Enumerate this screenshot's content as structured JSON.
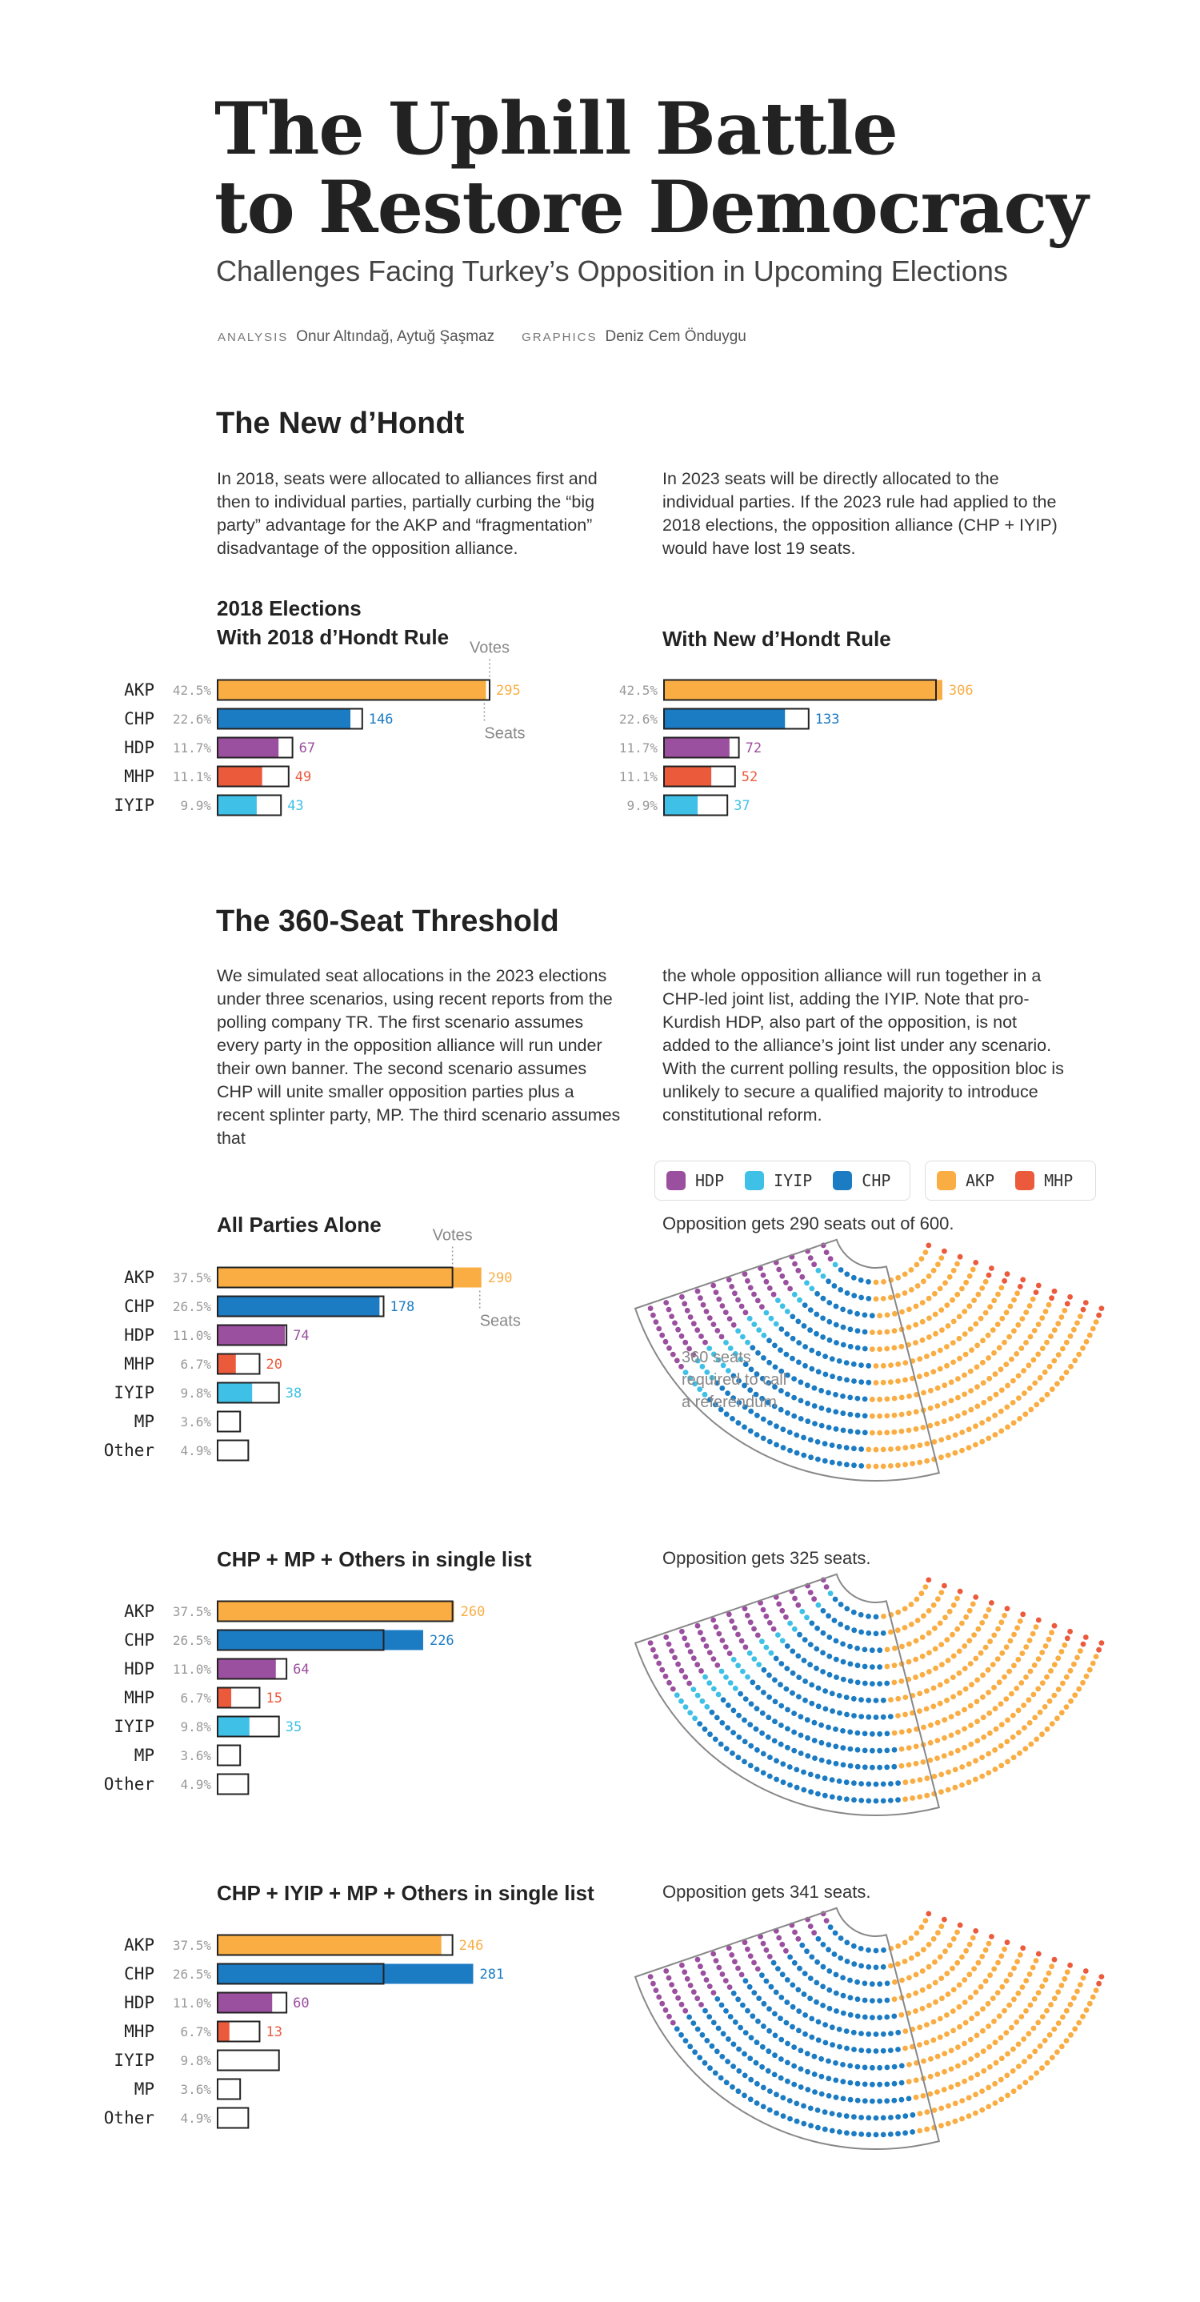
{
  "header": {
    "title_line1": "The Uphill Battle",
    "title_line2": "to Restore Democracy",
    "subtitle": "Challenges Facing Turkey’s Opposition in Upcoming Elections",
    "analysis_role": "ANALYSIS",
    "analysis_names": "Onur Altındağ, Aytuğ Şaşmaz",
    "graphics_role": "GRAPHICS",
    "graphics_names": "Deniz Cem Önduygu"
  },
  "colors": {
    "AKP": "#f9ad43",
    "CHP": "#1b7bc3",
    "HDP": "#9b4f9f",
    "MHP": "#ec5a3c",
    "IYIP": "#3fc0e6",
    "outline": "#222222",
    "vote_label": "#999999"
  },
  "section1": {
    "title": "The New d’Hondt",
    "para_left": "In 2018, seats were allocated to alliances first and then to individual parties, partially curbing the “big party” advantage for the AKP and “fragmentation” disadvantage of the opposition alliance.",
    "para_right": "In 2023 seats will be directly allocated to the individual parties. If the 2023 rule had applied to the 2018 elections, the opposition alliance (CHP + IYIP) would have lost 19 seats.",
    "chart_left_title_line1": "2018 Elections",
    "chart_left_title_line2": "With 2018 d’Hondt Rule",
    "chart_right_title": "With New d’Hondt Rule",
    "votes_label": "Votes",
    "seats_label": "Seats"
  },
  "section2": {
    "title": "The 360-Seat Threshold",
    "para_left": "We simulated seat allocations in the 2023 elections under three scenarios, using recent reports from the polling company TR. The first scenario assumes every party in the opposition alliance will run under their own banner. The second scenario assumes CHP will unite smaller opposition parties plus a recent splinter party, MP. The third scenario assumes that",
    "para_right": "the whole opposition alliance will run together in a CHP-led joint list, adding the IYIP. Note that pro-Kurdish HDP, also part of the opposition, is not added to the alliance’s joint list under any scenario. With the current polling results, the opposition bloc is unlikely to secure a qualified majority to introduce constitutional reform.",
    "legend_opposition": [
      "HDP",
      "IYIP",
      "CHP"
    ],
    "legend_government": [
      "AKP",
      "MHP"
    ],
    "votes_label": "Votes",
    "seats_label": "Seats",
    "threshold_note": [
      "360 seats",
      "required to call",
      "a referendum"
    ],
    "scenario_titles": [
      "All Parties Alone",
      "CHP + MP + Others in single list",
      "CHP + IYIP + MP + Others in single list"
    ],
    "scenario_captions": [
      "Opposition gets 290 seats out of 600.",
      "Opposition gets 325 seats.",
      "Opposition gets 341 seats."
    ]
  },
  "chart_data": [
    {
      "type": "bar",
      "title": "2018 Elections With 2018 d’Hondt Rule",
      "categories": [
        "AKP",
        "CHP",
        "HDP",
        "MHP",
        "IYIP"
      ],
      "series": [
        {
          "name": "Votes",
          "values": [
            42.5,
            22.6,
            11.7,
            11.1,
            9.9
          ],
          "labels": [
            "42.5%",
            "22.6%",
            "11.7%",
            "11.1%",
            "9.9%"
          ]
        },
        {
          "name": "Seats",
          "values": [
            295,
            146,
            67,
            49,
            43
          ]
        }
      ],
      "total_seats": 600
    },
    {
      "type": "bar",
      "title": "With New d’Hondt Rule",
      "categories": [
        "AKP",
        "CHP",
        "HDP",
        "MHP",
        "IYIP"
      ],
      "series": [
        {
          "name": "Votes",
          "values": [
            42.5,
            22.6,
            11.7,
            11.1,
            9.9
          ],
          "labels": [
            "42.5%",
            "22.6%",
            "11.7%",
            "11.1%",
            "9.9%"
          ]
        },
        {
          "name": "Seats",
          "values": [
            306,
            133,
            72,
            52,
            37
          ]
        }
      ],
      "total_seats": 600
    },
    {
      "type": "bar",
      "title": "All Parties Alone",
      "categories": [
        "AKP",
        "CHP",
        "HDP",
        "MHP",
        "IYIP",
        "MP",
        "Other"
      ],
      "series": [
        {
          "name": "Votes",
          "values": [
            37.5,
            26.5,
            11.0,
            6.7,
            9.8,
            3.6,
            4.9
          ],
          "labels": [
            "37.5%",
            "26.5%",
            "11.0%",
            "6.7%",
            "9.8%",
            "3.6%",
            "4.9%"
          ]
        },
        {
          "name": "Seats",
          "values": [
            290,
            178,
            74,
            20,
            38,
            0,
            0
          ]
        }
      ],
      "hemicycle": {
        "HDP": 74,
        "IYIP": 38,
        "CHP": 178,
        "AKP": 290,
        "MHP": 20
      }
    },
    {
      "type": "bar",
      "title": "CHP + MP + Others in single list",
      "categories": [
        "AKP",
        "CHP",
        "HDP",
        "MHP",
        "IYIP",
        "MP",
        "Other"
      ],
      "series": [
        {
          "name": "Votes",
          "values": [
            37.5,
            26.5,
            11.0,
            6.7,
            9.8,
            3.6,
            4.9
          ],
          "labels": [
            "37.5%",
            "26.5%",
            "11.0%",
            "6.7%",
            "9.8%",
            "3.6%",
            "4.9%"
          ]
        },
        {
          "name": "Seats",
          "values": [
            260,
            226,
            64,
            15,
            35,
            0,
            0
          ]
        }
      ],
      "hemicycle": {
        "HDP": 64,
        "IYIP": 35,
        "CHP": 226,
        "AKP": 260,
        "MHP": 15
      }
    },
    {
      "type": "bar",
      "title": "CHP + IYIP + MP + Others in single list",
      "categories": [
        "AKP",
        "CHP",
        "HDP",
        "MHP",
        "IYIP",
        "MP",
        "Other"
      ],
      "series": [
        {
          "name": "Votes",
          "values": [
            37.5,
            26.5,
            11.0,
            6.7,
            9.8,
            3.6,
            4.9
          ],
          "labels": [
            "37.5%",
            "26.5%",
            "11.0%",
            "6.7%",
            "9.8%",
            "3.6%",
            "4.9%"
          ]
        },
        {
          "name": "Seats",
          "values": [
            246,
            281,
            60,
            13,
            0,
            0,
            0
          ]
        }
      ],
      "hemicycle": {
        "HDP": 60,
        "IYIP": 0,
        "CHP": 281,
        "AKP": 246,
        "MHP": 13
      }
    }
  ]
}
